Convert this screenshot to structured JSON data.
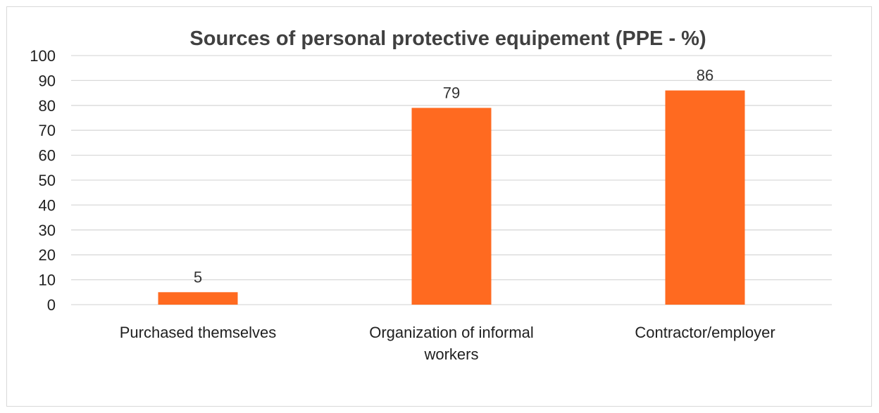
{
  "chart_data": {
    "type": "bar",
    "title": "Sources of personal protective equipement (PPE - %)",
    "categories": [
      [
        "Purchased themselves"
      ],
      [
        "Organization of informal",
        "workers"
      ],
      [
        "Contractor/employer"
      ]
    ],
    "values": [
      5,
      79,
      86
    ],
    "ylim": [
      0,
      100
    ],
    "yticks": [
      0,
      10,
      20,
      30,
      40,
      50,
      60,
      70,
      80,
      90,
      100
    ],
    "grid": true,
    "legend": "none",
    "data_labels": true,
    "bar_color": "#ff6a20",
    "grid_color": "#d9d9d9",
    "text_color": "#404040"
  }
}
